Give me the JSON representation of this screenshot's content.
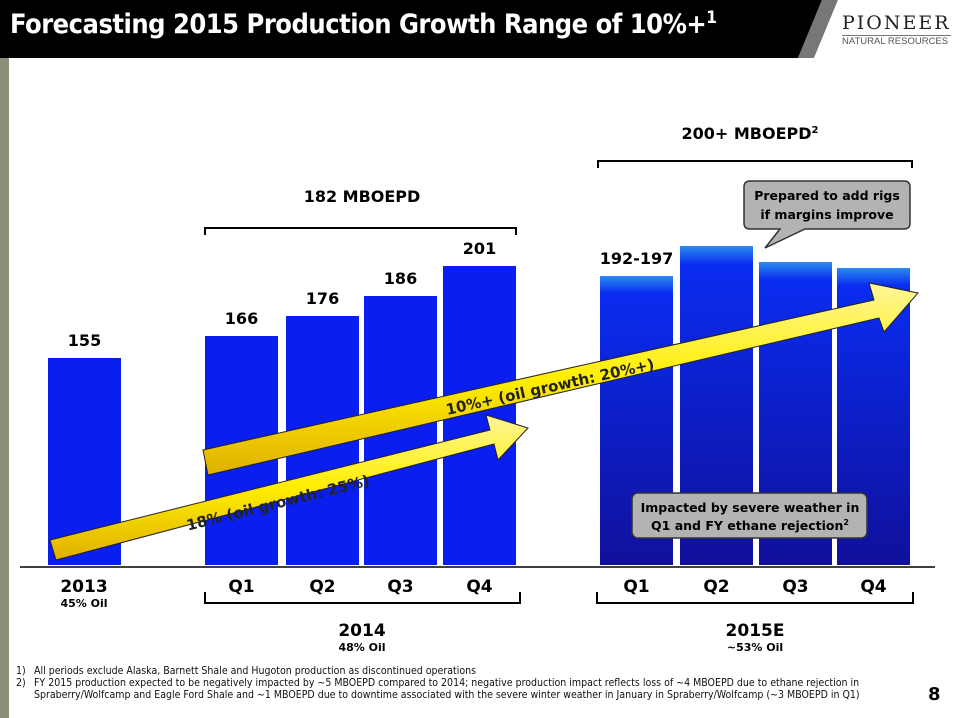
{
  "header": {
    "title": "Forecasting 2015 Production Growth Range of 10%+",
    "title_sup": "1",
    "logo_main": "PIONEER",
    "logo_sub": "NATURAL RESOURCES"
  },
  "chart_data": {
    "type": "bar",
    "title": "Forecasting 2015 Production Growth Range of 10%+",
    "ylabel": "MBOEPD",
    "categories": [
      "2013",
      "2014 Q1",
      "2014 Q2",
      "2014 Q3",
      "2014 Q4",
      "2015E Q1",
      "2015E Q2",
      "2015E Q3",
      "2015E Q4"
    ],
    "values": [
      155,
      166,
      176,
      186,
      201,
      196,
      211,
      203,
      200
    ],
    "data_labels": [
      "155",
      "166",
      "176",
      "186",
      "201",
      "192-197",
      "",
      "",
      ""
    ],
    "tick_labels": [
      "2013",
      "Q1",
      "Q2",
      "Q3",
      "Q4",
      "Q1",
      "Q2",
      "Q3",
      "Q4"
    ],
    "groups": [
      {
        "label": "2013",
        "sub": "45% Oil"
      },
      {
        "label": "2014",
        "sub": "48% Oil",
        "bracket_label": "182 MBOEPD"
      },
      {
        "label": "2015E",
        "sub": "~53% Oil",
        "bracket_label": "200+ MBOEPD",
        "bracket_sup": "2"
      }
    ],
    "arrows": [
      "18% (oil growth: 25%)",
      "10%+ (oil growth: 20%+)"
    ],
    "callouts": [
      {
        "line1": "Prepared to add rigs",
        "line2": "if margins improve"
      },
      {
        "line1": "Impacted by severe weather in",
        "line2": "Q1 and FY ethane rejection",
        "sup": "2"
      }
    ],
    "ylim": [
      51.5,
      260
    ]
  },
  "footnotes": [
    {
      "n": "1)",
      "text": "All periods exclude Alaska, Barnett Shale and Hugoton production as discontinued operations"
    },
    {
      "n": "2)",
      "text": "FY 2015 production expected to be negatively impacted by ~5 MBOEPD compared to 2014; negative production impact reflects loss of ~4 MBOEPD due to ethane rejection in Spraberry/Wolfcamp and Eagle Ford Shale and ~1 MBOEPD due to downtime associated with the severe winter weather in January  in Spraberry/Wolfcamp (~3 MBOEPD in Q1)"
    }
  ],
  "page_number": "8",
  "colors": {
    "bar": "#0000e0",
    "bar_light": "#2a8cf0",
    "arrow": "#ffee00",
    "header": "#000000"
  }
}
